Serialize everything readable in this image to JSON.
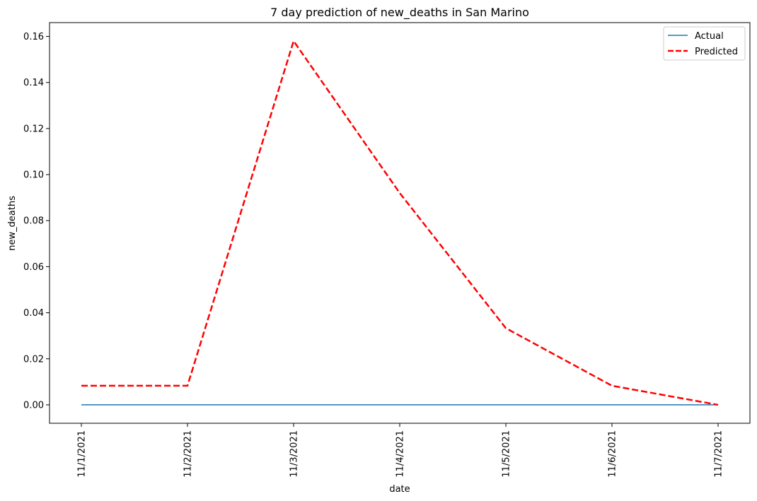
{
  "chart_data": {
    "type": "line",
    "title": "7 day prediction of new_deaths in San Marino",
    "xlabel": "date",
    "ylabel": "new_deaths",
    "categories": [
      "11/1/2021",
      "11/2/2021",
      "11/3/2021",
      "11/4/2021",
      "11/5/2021",
      "11/6/2021",
      "11/7/2021"
    ],
    "series": [
      {
        "name": "Actual",
        "values": [
          0,
          0,
          0,
          0,
          0,
          0,
          0
        ],
        "color": "#1f77b4",
        "style": "solid"
      },
      {
        "name": "Predicted",
        "values": [
          0.0083,
          0.0083,
          0.158,
          0.092,
          0.0333,
          0.0083,
          0.0
        ],
        "color": "#ff0000",
        "style": "dashed"
      }
    ],
    "ylim": [
      -0.008,
      0.166
    ],
    "yticks": [
      0.0,
      0.02,
      0.04,
      0.06,
      0.08,
      0.1,
      0.12,
      0.14,
      0.16
    ],
    "ytick_labels": [
      "0.00",
      "0.02",
      "0.04",
      "0.06",
      "0.08",
      "0.10",
      "0.12",
      "0.14",
      "0.16"
    ],
    "grid": false,
    "legend_position": "top-right"
  }
}
